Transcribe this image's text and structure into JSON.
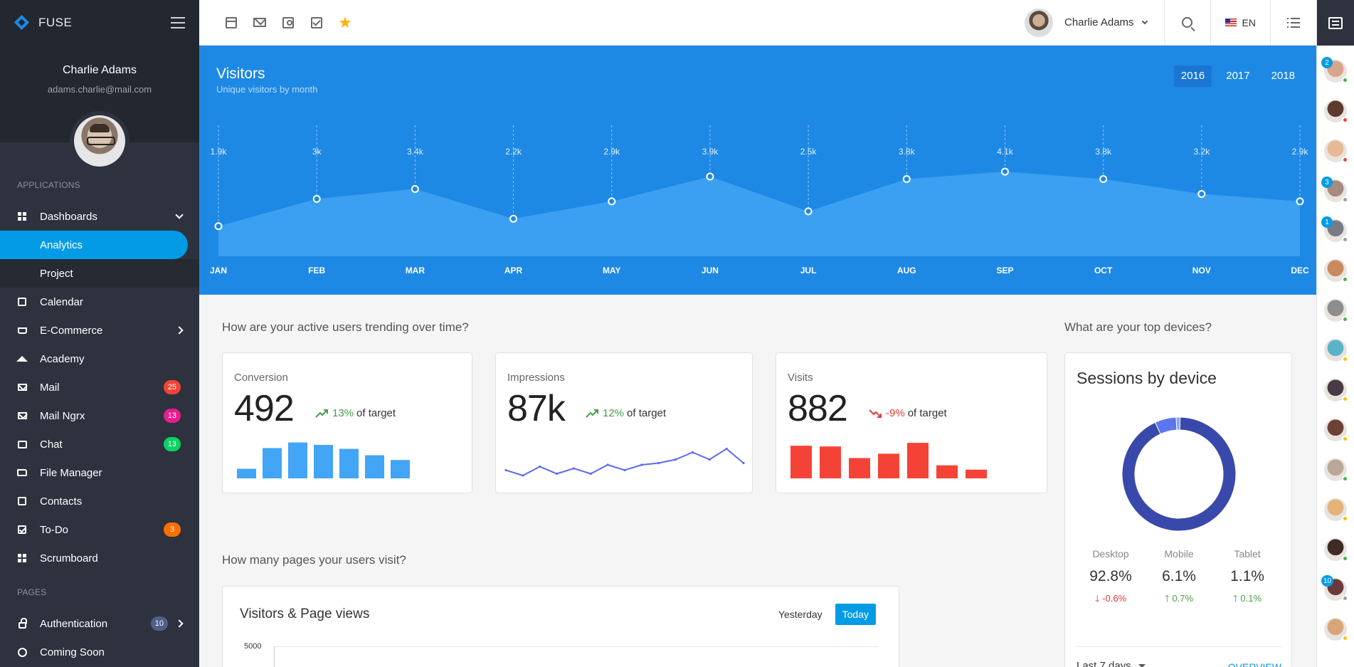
{
  "sidebar": {
    "logo": "FUSE",
    "user_name": "Charlie Adams",
    "user_email": "adams.charlie@mail.com",
    "sections": {
      "applications": "APPLICATIONS",
      "pages": "PAGES"
    },
    "items": [
      {
        "label": "Dashboards"
      },
      {
        "label": "Analytics"
      },
      {
        "label": "Project"
      },
      {
        "label": "Calendar"
      },
      {
        "label": "E-Commerce"
      },
      {
        "label": "Academy"
      },
      {
        "label": "Mail",
        "badge": "25",
        "badge_color": "#f44336"
      },
      {
        "label": "Mail Ngrx",
        "badge": "13",
        "badge_color": "#e91e8c"
      },
      {
        "label": "Chat",
        "badge": "13",
        "badge_color": "#09d261"
      },
      {
        "label": "File Manager"
      },
      {
        "label": "Contacts"
      },
      {
        "label": "To-Do",
        "badge": "3",
        "badge_color": "#ff6f00"
      },
      {
        "label": "Scrumboard"
      },
      {
        "label": "Authentication",
        "badge": "10",
        "badge_color": "#525e8a"
      },
      {
        "label": "Coming Soon"
      }
    ]
  },
  "topbar": {
    "shortcuts": [
      "calendar-icon",
      "mail-icon",
      "contacts-icon",
      "todo-icon",
      "star-icon"
    ],
    "user_name": "Charlie Adams",
    "language": "EN"
  },
  "quick_panel": {
    "contacts": [
      {
        "badge": "2",
        "status": "#4caf50",
        "bg": "#d7a58d"
      },
      {
        "badge": "",
        "status": "#f44336",
        "bg": "#5d3b2e"
      },
      {
        "badge": "",
        "status": "#f44336",
        "bg": "#e8b994"
      },
      {
        "badge": "3",
        "status": "#9e9e9e",
        "bg": "#a58b80"
      },
      {
        "badge": "1",
        "status": "#9e9e9e",
        "bg": "#7b7b86"
      },
      {
        "badge": "",
        "status": "#4caf50",
        "bg": "#c98a5e"
      },
      {
        "badge": "",
        "status": "#4caf50",
        "bg": "#8d8d8d"
      },
      {
        "badge": "",
        "status": "#ffc107",
        "bg": "#5bb3c9"
      },
      {
        "badge": "",
        "status": "#ffc107",
        "bg": "#4a3a46"
      },
      {
        "badge": "",
        "status": "#ffc107",
        "bg": "#6d4236"
      },
      {
        "badge": "",
        "status": "#4caf50",
        "bg": "#b9a79b"
      },
      {
        "badge": "",
        "status": "#ffc107",
        "bg": "#e5b27c"
      },
      {
        "badge": "",
        "status": "#4caf50",
        "bg": "#3e2b26"
      },
      {
        "badge": "10",
        "status": "#9e9e9e",
        "bg": "#6b3a3a"
      },
      {
        "badge": "",
        "status": "#ffc107",
        "bg": "#d8a579"
      }
    ]
  },
  "visitors": {
    "title": "Visitors",
    "subtitle": "Unique visitors by month",
    "years": [
      "2016",
      "2017",
      "2018"
    ],
    "selected_year": "2016"
  },
  "chart_data": [
    {
      "type": "area",
      "title": "Visitors",
      "subtitle": "Unique visitors by month",
      "categories": [
        "JAN",
        "FEB",
        "MAR",
        "APR",
        "MAY",
        "JUN",
        "JUL",
        "AUG",
        "SEP",
        "OCT",
        "NOV",
        "DEC"
      ],
      "values": [
        1.9,
        3.0,
        3.4,
        2.2,
        2.9,
        3.9,
        2.5,
        3.8,
        4.1,
        3.8,
        3.2,
        2.9
      ],
      "labels": [
        "1.9k",
        "3k",
        "3.4k",
        "2.2k",
        "2.9k",
        "3.9k",
        "2.5k",
        "3.8k",
        "4.1k",
        "3.8k",
        "3.2k",
        "2.9k"
      ],
      "ylim": [
        0,
        5
      ]
    },
    {
      "type": "bar",
      "title": "Conversion",
      "values": [
        12,
        38,
        45,
        42,
        37,
        29,
        23
      ],
      "ylim": [
        0,
        50
      ]
    },
    {
      "type": "line",
      "title": "Impressions",
      "values": [
        3,
        0,
        5,
        1,
        4,
        1,
        6,
        3,
        6,
        7,
        9,
        13,
        9,
        15,
        7
      ],
      "ylim": [
        0,
        16
      ]
    },
    {
      "type": "bar",
      "title": "Visits",
      "values": [
        45,
        44,
        28,
        34,
        49,
        18,
        12
      ],
      "ylim": [
        0,
        55
      ]
    },
    {
      "type": "pie",
      "title": "Sessions by device",
      "categories": [
        "Desktop",
        "Mobile",
        "Tablet"
      ],
      "values": [
        92.8,
        6.1,
        1.1
      ],
      "colors": [
        "#3949ab",
        "#5c75f0",
        "#8ea2ff"
      ]
    }
  ],
  "active_users": {
    "question": "How are your active users trending over time?",
    "widgets": [
      {
        "label": "Conversion",
        "value": "492",
        "trend": "13%",
        "trend_text": "of target",
        "direction": "up",
        "color": "#42a5f5"
      },
      {
        "label": "Impressions",
        "value": "87k",
        "trend": "12%",
        "trend_text": "of target",
        "direction": "up",
        "color": "#5c6bf0"
      },
      {
        "label": "Visits",
        "value": "882",
        "trend": "-9%",
        "trend_text": "of target",
        "direction": "down",
        "color": "#f44336"
      }
    ]
  },
  "devices": {
    "question": "What are your top devices?",
    "title": "Sessions by device",
    "columns": [
      {
        "name": "Desktop",
        "value": "92.8%",
        "change": "-0.6%",
        "direction": "down"
      },
      {
        "name": "Mobile",
        "value": "6.1%",
        "change": "0.7%",
        "direction": "up"
      },
      {
        "name": "Tablet",
        "value": "1.1%",
        "change": "0.1%",
        "direction": "up"
      }
    ],
    "range": "Last 7 days",
    "overview": "OVERVIEW"
  },
  "pages": {
    "question": "How many pages your users visit?",
    "title": "Visitors & Page views",
    "tabs": [
      "Yesterday",
      "Today"
    ],
    "selected_tab": "Today",
    "axis_top": "5000"
  }
}
